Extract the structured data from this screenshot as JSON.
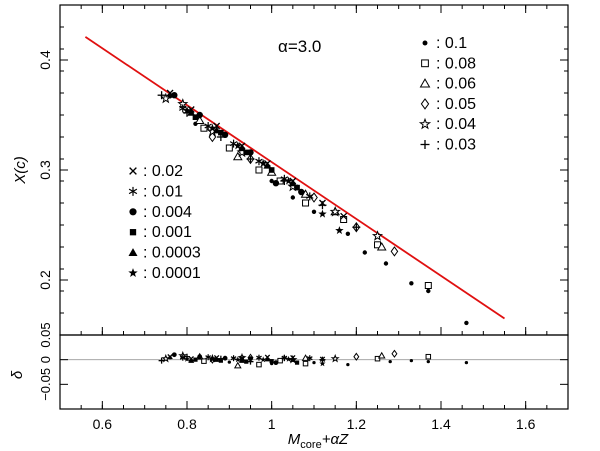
{
  "chart_data": {
    "type": "scatter",
    "annotation": "α=3.0",
    "xlabel": "M_core+αZ",
    "xlabel_main": "M",
    "xlabel_sub": "core",
    "xlabel_rest": "+αZ",
    "xlim": [
      0.5,
      1.7
    ],
    "x_ticks": [
      0.6,
      0.8,
      1.0,
      1.2,
      1.4,
      1.6
    ],
    "x_tick_labels": [
      "0.6",
      "0.8",
      "1",
      "1.2",
      "1.4",
      "1.6"
    ],
    "top_panel": {
      "ylabel": "X(c)",
      "ylim": [
        0.15,
        0.45
      ],
      "y_ticks": [
        0.2,
        0.3,
        0.4
      ],
      "y_tick_labels": [
        "0.2",
        "0.3",
        "0.4"
      ],
      "fit_line": {
        "x": [
          0.56,
          1.55
        ],
        "y": [
          0.421,
          0.165
        ],
        "color": "#e01010"
      }
    },
    "bottom_panel": {
      "ylabel": "δ",
      "ylim": [
        -0.1,
        0.05
      ],
      "y_ticks": [
        0.05,
        0,
        -0.05
      ],
      "y_tick_labels": [
        "0.05",
        "0",
        "−0.05"
      ],
      "reference_line_y": 0
    },
    "legend_right": [
      {
        "marker": "dot",
        "label": ": 0.1"
      },
      {
        "marker": "open-square",
        "label": ": 0.08"
      },
      {
        "marker": "open-triangle",
        "label": ": 0.06"
      },
      {
        "marker": "open-diamond",
        "label": ": 0.05"
      },
      {
        "marker": "open-star",
        "label": ": 0.04"
      },
      {
        "marker": "plus",
        "label": ": 0.03"
      }
    ],
    "legend_left": [
      {
        "marker": "cross",
        "label": ": 0.02"
      },
      {
        "marker": "asterisk",
        "label": ": 0.01"
      },
      {
        "marker": "big-dot",
        "label": ": 0.004"
      },
      {
        "marker": "filled-square",
        "label": ": 0.001"
      },
      {
        "marker": "filled-triangle",
        "label": ": 0.0003"
      },
      {
        "marker": "filled-star",
        "label": ": 0.0001"
      }
    ],
    "series": [
      {
        "name": "0.1",
        "marker": "dot",
        "points": [
          [
            0.76,
            0.367
          ],
          [
            0.82,
            0.342
          ],
          [
            0.9,
            0.32
          ],
          [
            0.97,
            0.3
          ],
          [
            1.0,
            0.29
          ],
          [
            1.05,
            0.275
          ],
          [
            1.1,
            0.262
          ],
          [
            1.18,
            0.242
          ],
          [
            1.22,
            0.225
          ],
          [
            1.27,
            0.215
          ],
          [
            1.33,
            0.197
          ],
          [
            1.37,
            0.19
          ],
          [
            1.46,
            0.161
          ]
        ]
      },
      {
        "name": "0.08",
        "marker": "open-square",
        "points": [
          [
            0.84,
            0.338
          ],
          [
            0.9,
            0.32
          ],
          [
            0.97,
            0.3
          ],
          [
            1.02,
            0.29
          ],
          [
            1.08,
            0.27
          ],
          [
            1.17,
            0.255
          ],
          [
            1.25,
            0.232
          ],
          [
            1.37,
            0.195
          ]
        ]
      },
      {
        "name": "0.06",
        "marker": "open-triangle",
        "points": [
          [
            0.83,
            0.345
          ],
          [
            0.92,
            0.312
          ],
          [
            1.0,
            0.298
          ],
          [
            1.08,
            0.278
          ],
          [
            1.15,
            0.262
          ],
          [
            1.26,
            0.23
          ]
        ]
      },
      {
        "name": "0.05",
        "marker": "open-diamond",
        "points": [
          [
            0.86,
            0.33
          ],
          [
            0.95,
            0.31
          ],
          [
            1.1,
            0.275
          ],
          [
            1.2,
            0.248
          ],
          [
            1.29,
            0.226
          ]
        ]
      },
      {
        "name": "0.04",
        "marker": "open-star",
        "points": [
          [
            0.75,
            0.365
          ],
          [
            0.79,
            0.36
          ],
          [
            0.86,
            0.335
          ],
          [
            0.93,
            0.316
          ],
          [
            1.05,
            0.285
          ],
          [
            1.15,
            0.262
          ],
          [
            1.25,
            0.24
          ]
        ]
      },
      {
        "name": "0.03",
        "marker": "plus",
        "points": [
          [
            0.74,
            0.368
          ],
          [
            0.8,
            0.352
          ],
          [
            0.88,
            0.33
          ],
          [
            0.95,
            0.31
          ],
          [
            1.03,
            0.29
          ],
          [
            1.12,
            0.268
          ],
          [
            1.2,
            0.248
          ]
        ]
      },
      {
        "name": "0.02",
        "marker": "cross",
        "points": [
          [
            0.76,
            0.37
          ],
          [
            0.81,
            0.355
          ],
          [
            0.87,
            0.34
          ],
          [
            0.93,
            0.322
          ],
          [
            0.99,
            0.306
          ],
          [
            1.05,
            0.29
          ],
          [
            1.12,
            0.27
          ],
          [
            1.17,
            0.258
          ]
        ]
      },
      {
        "name": "0.01",
        "marker": "asterisk",
        "points": [
          [
            0.79,
            0.356
          ],
          [
            0.85,
            0.34
          ],
          [
            0.91,
            0.324
          ],
          [
            0.97,
            0.308
          ],
          [
            1.03,
            0.292
          ],
          [
            1.09,
            0.276
          ]
        ]
      },
      {
        "name": "0.004",
        "marker": "big-dot",
        "points": [
          [
            0.77,
            0.368
          ],
          [
            0.83,
            0.35
          ],
          [
            0.89,
            0.332
          ],
          [
            0.95,
            0.316
          ],
          [
            1.01,
            0.288
          ],
          [
            1.07,
            0.28
          ]
        ]
      },
      {
        "name": "0.001",
        "marker": "filled-square",
        "points": [
          [
            0.82,
            0.348
          ],
          [
            0.88,
            0.334
          ],
          [
            0.94,
            0.316
          ],
          [
            1.0,
            0.3
          ],
          [
            1.06,
            0.284
          ]
        ]
      },
      {
        "name": "0.0003",
        "marker": "filled-triangle",
        "points": [
          [
            0.81,
            0.352
          ],
          [
            0.87,
            0.336
          ],
          [
            0.93,
            0.32
          ],
          [
            0.99,
            0.304
          ],
          [
            1.05,
            0.288
          ]
        ]
      },
      {
        "name": "0.0001",
        "marker": "filled-star",
        "points": [
          [
            0.8,
            0.354
          ],
          [
            0.86,
            0.338
          ],
          [
            0.92,
            0.322
          ],
          [
            0.98,
            0.306
          ],
          [
            1.04,
            0.29
          ],
          [
            1.12,
            0.26
          ],
          [
            1.16,
            0.245
          ]
        ]
      }
    ],
    "residuals": [
      {
        "marker": "dot",
        "points": [
          [
            0.76,
            0.004
          ],
          [
            0.9,
            -0.005
          ],
          [
            1.0,
            -0.008
          ],
          [
            1.1,
            -0.006
          ],
          [
            1.18,
            -0.01
          ],
          [
            1.28,
            -0.004
          ],
          [
            1.33,
            -0.002
          ],
          [
            1.37,
            -0.004
          ],
          [
            1.46,
            -0.006
          ]
        ]
      },
      {
        "marker": "open-square",
        "points": [
          [
            0.84,
            -0.003
          ],
          [
            0.97,
            -0.01
          ],
          [
            1.02,
            -0.002
          ],
          [
            1.08,
            -0.008
          ],
          [
            1.25,
            0.002
          ],
          [
            1.37,
            0.006
          ]
        ]
      },
      {
        "marker": "open-triangle",
        "points": [
          [
            0.83,
            0.006
          ],
          [
            0.92,
            -0.012
          ],
          [
            1.08,
            0.003
          ],
          [
            1.26,
            0.008
          ]
        ]
      },
      {
        "marker": "open-diamond",
        "points": [
          [
            0.86,
            0.0
          ],
          [
            0.95,
            0.004
          ],
          [
            1.2,
            0.006
          ],
          [
            1.29,
            0.012
          ]
        ]
      },
      {
        "marker": "open-star",
        "points": [
          [
            0.75,
            0.002
          ],
          [
            0.79,
            0.008
          ],
          [
            0.86,
            0.002
          ],
          [
            0.93,
            0.004
          ],
          [
            1.05,
            0.0
          ],
          [
            1.15,
            0.002
          ]
        ]
      },
      {
        "marker": "plus",
        "points": [
          [
            0.74,
            -0.002
          ],
          [
            0.8,
            0.006
          ],
          [
            0.88,
            0.002
          ],
          [
            0.95,
            -0.004
          ],
          [
            1.03,
            0.003
          ],
          [
            1.12,
            0.0
          ]
        ]
      },
      {
        "marker": "cross",
        "points": [
          [
            0.76,
            0.006
          ],
          [
            0.81,
            0.002
          ],
          [
            0.87,
            0.004
          ],
          [
            0.93,
            0.003
          ],
          [
            0.99,
            0.005
          ],
          [
            1.05,
            0.004
          ],
          [
            1.12,
            0.001
          ]
        ]
      },
      {
        "marker": "asterisk",
        "points": [
          [
            0.79,
            0.004
          ],
          [
            0.85,
            0.005
          ],
          [
            0.91,
            0.003
          ],
          [
            0.97,
            0.004
          ],
          [
            1.03,
            0.004
          ],
          [
            1.09,
            0.003
          ]
        ]
      },
      {
        "marker": "big-dot",
        "points": [
          [
            0.77,
            0.01
          ],
          [
            0.83,
            0.006
          ],
          [
            0.89,
            0.003
          ],
          [
            0.95,
            0.002
          ],
          [
            1.01,
            -0.006
          ]
        ]
      },
      {
        "marker": "filled-square",
        "points": [
          [
            0.82,
            0.0
          ],
          [
            0.88,
            -0.002
          ],
          [
            0.94,
            -0.004
          ],
          [
            1.0,
            -0.003
          ],
          [
            1.06,
            -0.006
          ]
        ]
      },
      {
        "marker": "filled-triangle",
        "points": [
          [
            0.81,
            -0.002
          ],
          [
            0.87,
            0.0
          ],
          [
            0.93,
            -0.002
          ],
          [
            0.99,
            0.001
          ],
          [
            1.05,
            0.0
          ]
        ]
      },
      {
        "marker": "filled-star",
        "points": [
          [
            0.8,
            0.001
          ],
          [
            0.86,
            0.002
          ],
          [
            0.92,
            0.0
          ],
          [
            0.98,
            0.0
          ],
          [
            1.04,
            0.001
          ],
          [
            1.12,
            -0.008
          ]
        ]
      }
    ]
  }
}
